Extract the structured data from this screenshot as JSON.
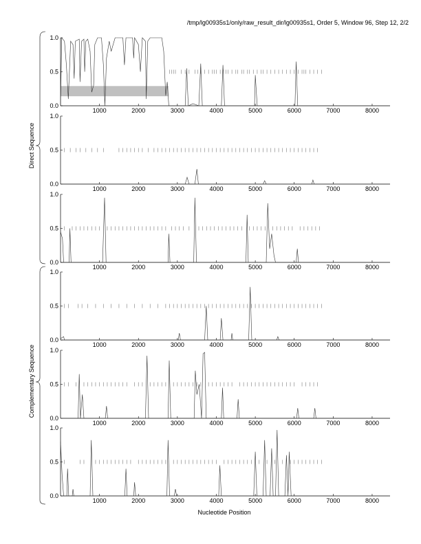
{
  "title": "/tmp/lg00935s1/only/raw_result_dir/lg00935s1, Order 5, Window 96, Step 12, 2/2",
  "group_labels": {
    "direct": "Direct Sequence",
    "complementary": "Complementary Sequence"
  },
  "chart_data": {
    "type": "line",
    "xlabel": "Nucleotide Position",
    "xlim": [
      0,
      8460
    ],
    "ylim": [
      0,
      1
    ],
    "xticks": [
      1000,
      2000,
      3000,
      4000,
      5000,
      6000,
      7000,
      8000
    ],
    "yticks": [
      "0.0",
      "0.5",
      "1.0"
    ],
    "highlight_region": {
      "panel": 0,
      "x": [
        0,
        2770
      ],
      "y": [
        0.14,
        0.29
      ],
      "color": "#c0c0c0"
    },
    "panels": [
      {
        "group": "direct",
        "points": [
          [
            0,
            0
          ],
          [
            30,
            1
          ],
          [
            100,
            0.95
          ],
          [
            150,
            0.6
          ],
          [
            200,
            0.1
          ],
          [
            260,
            0.95
          ],
          [
            320,
            0.9
          ],
          [
            350,
            0.4
          ],
          [
            380,
            0.95
          ],
          [
            480,
            0.98
          ],
          [
            500,
            0.35
          ],
          [
            540,
            0.95
          ],
          [
            600,
            0.98
          ],
          [
            620,
            0.5
          ],
          [
            650,
            0.95
          ],
          [
            700,
            0.98
          ],
          [
            760,
            0.8
          ],
          [
            800,
            0.2
          ],
          [
            850,
            0.3
          ],
          [
            880,
            0.9
          ],
          [
            950,
            1
          ],
          [
            1050,
            1
          ],
          [
            1100,
            0.6
          ],
          [
            1140,
            0
          ],
          [
            1180,
            0.7
          ],
          [
            1250,
            0.95
          ],
          [
            1300,
            0.8
          ],
          [
            1400,
            1
          ],
          [
            1600,
            1
          ],
          [
            1640,
            0.6
          ],
          [
            1680,
            1
          ],
          [
            1850,
            1
          ],
          [
            1880,
            0.7
          ],
          [
            1900,
            1
          ],
          [
            2000,
            0.9
          ],
          [
            2050,
            0.5
          ],
          [
            2100,
            1
          ],
          [
            2180,
            0.95
          ],
          [
            2200,
            0.1
          ],
          [
            2240,
            0.95
          ],
          [
            2300,
            1
          ],
          [
            2600,
            1
          ],
          [
            2650,
            0.8
          ],
          [
            2700,
            0.15
          ],
          [
            2740,
            0.35
          ],
          [
            2780,
            0
          ],
          [
            3200,
            0
          ],
          [
            3240,
            0.55
          ],
          [
            3280,
            0
          ],
          [
            3400,
            0.03
          ],
          [
            3550,
            0
          ],
          [
            3600,
            0.62
          ],
          [
            3640,
            0
          ],
          [
            4130,
            0
          ],
          [
            4170,
            0.6
          ],
          [
            4210,
            0
          ],
          [
            4980,
            0
          ],
          [
            5000,
            0.45
          ],
          [
            5050,
            0
          ],
          [
            6020,
            0
          ],
          [
            6050,
            0.65
          ],
          [
            6090,
            0
          ],
          [
            8460,
            0
          ]
        ],
        "ticks": [
          2800,
          2850,
          2900,
          2950,
          3100,
          3200,
          3300,
          3450,
          3520,
          3600,
          3700,
          3800,
          3900,
          3950,
          4000,
          4100,
          4180,
          4250,
          4300,
          4400,
          4500,
          4550,
          4650,
          4700,
          4800,
          4850,
          4950,
          5050,
          5150,
          5200,
          5300,
          5400,
          5500,
          5600,
          5700,
          5800,
          5900,
          6000,
          6100,
          6200,
          6250,
          6300,
          6400,
          6500,
          6600,
          6700
        ]
      },
      {
        "group": "direct",
        "points": [
          [
            0,
            0
          ],
          [
            3200,
            0
          ],
          [
            3250,
            0.1
          ],
          [
            3300,
            0
          ],
          [
            3450,
            0
          ],
          [
            3500,
            0.22
          ],
          [
            3540,
            0
          ],
          [
            5200,
            0
          ],
          [
            5240,
            0.05
          ],
          [
            5280,
            0
          ],
          [
            6450,
            0
          ],
          [
            6480,
            0.06
          ],
          [
            6510,
            0
          ],
          [
            8460,
            0
          ]
        ],
        "ticks": [
          100,
          250,
          400,
          500,
          650,
          800,
          950,
          1100,
          1500,
          1600,
          1700,
          1800,
          1900,
          2000,
          2100,
          2250,
          2400,
          2500,
          2600,
          2700,
          2800,
          2900,
          3000,
          3100,
          3200,
          3300,
          3400,
          3500,
          3600,
          3700,
          3800,
          3900,
          4000,
          4100,
          4200,
          4300,
          4400,
          4500,
          4600,
          4700,
          4800,
          4900,
          5000,
          5100,
          5200,
          5300,
          5400,
          5500,
          5600,
          5700,
          5800,
          5900,
          6000,
          6100,
          6200,
          6300,
          6400,
          6500,
          6600
        ]
      },
      {
        "group": "direct",
        "points": [
          [
            0,
            0.45
          ],
          [
            50,
            0.35
          ],
          [
            80,
            0
          ],
          [
            220,
            0
          ],
          [
            240,
            0.5
          ],
          [
            270,
            0
          ],
          [
            1080,
            0
          ],
          [
            1130,
            0.95
          ],
          [
            1170,
            0
          ],
          [
            2760,
            0
          ],
          [
            2780,
            0.42
          ],
          [
            2810,
            0
          ],
          [
            3420,
            0
          ],
          [
            3450,
            0.95
          ],
          [
            3490,
            0
          ],
          [
            4760,
            0
          ],
          [
            4790,
            0.7
          ],
          [
            4820,
            0
          ],
          [
            5280,
            0
          ],
          [
            5320,
            0.87
          ],
          [
            5370,
            0.2
          ],
          [
            5420,
            0.42
          ],
          [
            5480,
            0.1
          ],
          [
            5520,
            0
          ],
          [
            6050,
            0
          ],
          [
            6080,
            0.2
          ],
          [
            6110,
            0
          ],
          [
            8460,
            0
          ]
        ],
        "ticks": [
          100,
          300,
          400,
          500,
          600,
          700,
          800,
          900,
          1000,
          1200,
          1300,
          1400,
          1500,
          1600,
          1700,
          1800,
          1900,
          2000,
          2100,
          2200,
          2300,
          2400,
          2500,
          2600,
          2700,
          2850,
          2950,
          3050,
          3150,
          3300,
          3550,
          3650,
          3750,
          3850,
          3950,
          4050,
          4150,
          4250,
          4350,
          4450,
          4550,
          4650,
          4850,
          4950,
          5050,
          5150,
          5250,
          5450,
          5550,
          5650,
          5750,
          5850,
          5950,
          6150,
          6250,
          6350,
          6450,
          6550,
          6650
        ]
      },
      {
        "group": "complementary",
        "points": [
          [
            0,
            0.02
          ],
          [
            80,
            0.05
          ],
          [
            100,
            0
          ],
          [
            3020,
            0
          ],
          [
            3050,
            0.1
          ],
          [
            3080,
            0
          ],
          [
            3700,
            0
          ],
          [
            3740,
            0.5
          ],
          [
            3780,
            0
          ],
          [
            4100,
            0
          ],
          [
            4130,
            0.32
          ],
          [
            4170,
            0
          ],
          [
            4380,
            0
          ],
          [
            4400,
            0.1
          ],
          [
            4420,
            0
          ],
          [
            4830,
            0
          ],
          [
            4870,
            0.78
          ],
          [
            4910,
            0
          ],
          [
            5550,
            0
          ],
          [
            5580,
            0.05
          ],
          [
            5610,
            0
          ],
          [
            8460,
            0
          ]
        ],
        "ticks": [
          100,
          200,
          450,
          550,
          700,
          900,
          1100,
          1300,
          1500,
          1700,
          1900,
          2100,
          2300,
          2500,
          2700,
          2800,
          2900,
          3000,
          3100,
          3200,
          3300,
          3400,
          3500,
          3600,
          3700,
          3800,
          3900,
          4000,
          4100,
          4200,
          4300,
          4400,
          4500,
          4600,
          4700,
          4800,
          4900,
          5000,
          5100,
          5200,
          5300,
          5400,
          5500,
          5600,
          5700,
          5800,
          5900,
          6000,
          6100,
          6200,
          6300,
          6400,
          6500,
          6600,
          6700
        ]
      },
      {
        "group": "complementary",
        "points": [
          [
            0,
            0
          ],
          [
            450,
            0
          ],
          [
            480,
            0.65
          ],
          [
            510,
            0
          ],
          [
            560,
            0.35
          ],
          [
            600,
            0
          ],
          [
            1150,
            0
          ],
          [
            1180,
            0.18
          ],
          [
            1210,
            0
          ],
          [
            2180,
            0
          ],
          [
            2220,
            0.92
          ],
          [
            2260,
            0
          ],
          [
            2760,
            0
          ],
          [
            2790,
            0.85
          ],
          [
            2830,
            0
          ],
          [
            3430,
            0
          ],
          [
            3460,
            0.7
          ],
          [
            3500,
            0.35
          ],
          [
            3560,
            0.5
          ],
          [
            3620,
            0
          ],
          [
            3660,
            0.95
          ],
          [
            3700,
            0.97
          ],
          [
            3740,
            0
          ],
          [
            4130,
            0
          ],
          [
            4160,
            0.45
          ],
          [
            4190,
            0
          ],
          [
            4530,
            0
          ],
          [
            4560,
            0.28
          ],
          [
            4590,
            0
          ],
          [
            6060,
            0
          ],
          [
            6090,
            0.15
          ],
          [
            6120,
            0
          ],
          [
            6500,
            0
          ],
          [
            6530,
            0.15
          ],
          [
            6560,
            0
          ],
          [
            8460,
            0
          ]
        ],
        "ticks": [
          100,
          200,
          400,
          600,
          700,
          800,
          900,
          1000,
          1100,
          1200,
          1300,
          1400,
          1500,
          1600,
          1700,
          1900,
          2000,
          2100,
          2300,
          2400,
          2500,
          2600,
          2700,
          2900,
          3000,
          3100,
          3200,
          3300,
          3400,
          3500,
          3600,
          3800,
          3900,
          4000,
          4100,
          4200,
          4300,
          4400,
          4600,
          4700,
          4800,
          4900,
          5000,
          5100,
          5200,
          5300,
          5400,
          5500,
          5600,
          5700,
          5800,
          5900,
          6000,
          6200,
          6300,
          6400,
          6500,
          6600
        ]
      },
      {
        "group": "complementary",
        "points": [
          [
            0,
            0.8
          ],
          [
            40,
            0.3
          ],
          [
            80,
            0
          ],
          [
            160,
            0
          ],
          [
            180,
            0.4
          ],
          [
            210,
            0
          ],
          [
            300,
            0
          ],
          [
            320,
            0.1
          ],
          [
            340,
            0
          ],
          [
            760,
            0
          ],
          [
            790,
            0.82
          ],
          [
            830,
            0
          ],
          [
            1650,
            0
          ],
          [
            1680,
            0.4
          ],
          [
            1710,
            0
          ],
          [
            1880,
            0
          ],
          [
            1900,
            0.2
          ],
          [
            1930,
            0
          ],
          [
            2730,
            0
          ],
          [
            2760,
            0.82
          ],
          [
            2800,
            0
          ],
          [
            2920,
            0
          ],
          [
            2950,
            0.1
          ],
          [
            2980,
            0
          ],
          [
            4060,
            0
          ],
          [
            4090,
            0.45
          ],
          [
            4130,
            0
          ],
          [
            4960,
            0
          ],
          [
            5000,
            0.65
          ],
          [
            5040,
            0
          ],
          [
            5200,
            0
          ],
          [
            5240,
            0.82
          ],
          [
            5280,
            0
          ],
          [
            5380,
            0
          ],
          [
            5420,
            0.7
          ],
          [
            5460,
            0
          ],
          [
            5520,
            0
          ],
          [
            5560,
            0.97
          ],
          [
            5600,
            0
          ],
          [
            5760,
            0
          ],
          [
            5800,
            0.6
          ],
          [
            5840,
            0
          ],
          [
            5870,
            0.65
          ],
          [
            5920,
            0
          ],
          [
            8460,
            0
          ]
        ],
        "ticks": [
          100,
          500,
          600,
          900,
          1000,
          1100,
          1200,
          1300,
          1400,
          1500,
          1600,
          1700,
          1800,
          2000,
          2100,
          2200,
          2300,
          2400,
          2500,
          2600,
          2700,
          2900,
          3000,
          3100,
          3200,
          3300,
          3400,
          3500,
          3600,
          3700,
          3800,
          3900,
          4000,
          4200,
          4300,
          4400,
          4500,
          4600,
          4700,
          4800,
          4900,
          5100,
          5300,
          5500,
          5700,
          5900,
          6000,
          6100,
          6200,
          6300,
          6400,
          6500,
          6600,
          6700
        ]
      }
    ]
  }
}
